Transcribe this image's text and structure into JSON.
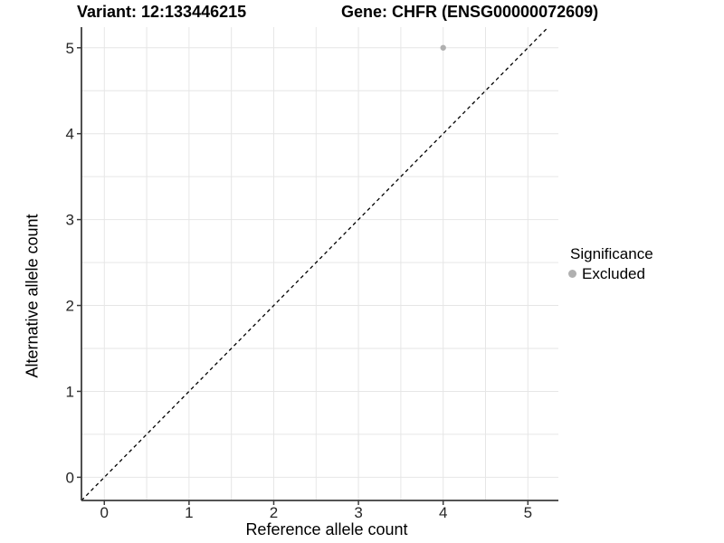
{
  "header": {
    "variant_title": "Variant: 12:133446215",
    "gene_title": "Gene: CHFR (ENSG00000072609)"
  },
  "chart_data": {
    "type": "scatter",
    "xlabel": "Reference allele count",
    "ylabel": "Alternative allele count",
    "x_ticks": [
      0,
      1,
      2,
      3,
      4,
      5
    ],
    "y_ticks": [
      0,
      1,
      2,
      3,
      4,
      5
    ],
    "xlim": [
      -0.27,
      5.36
    ],
    "ylim": [
      -0.27,
      5.24
    ],
    "grid_interval": 0.5,
    "grid_on": true,
    "grid_color": "#e6e6e6",
    "axis_color": "#3c3c3c",
    "series": [
      {
        "name": "Excluded",
        "color": "#b0b0b0",
        "points": [
          [
            4,
            5
          ]
        ]
      }
    ],
    "identity_line": {
      "equation": "y = x",
      "style": "dashed",
      "color": "#000000"
    },
    "legend": {
      "title": "Significance",
      "position": "right"
    }
  }
}
